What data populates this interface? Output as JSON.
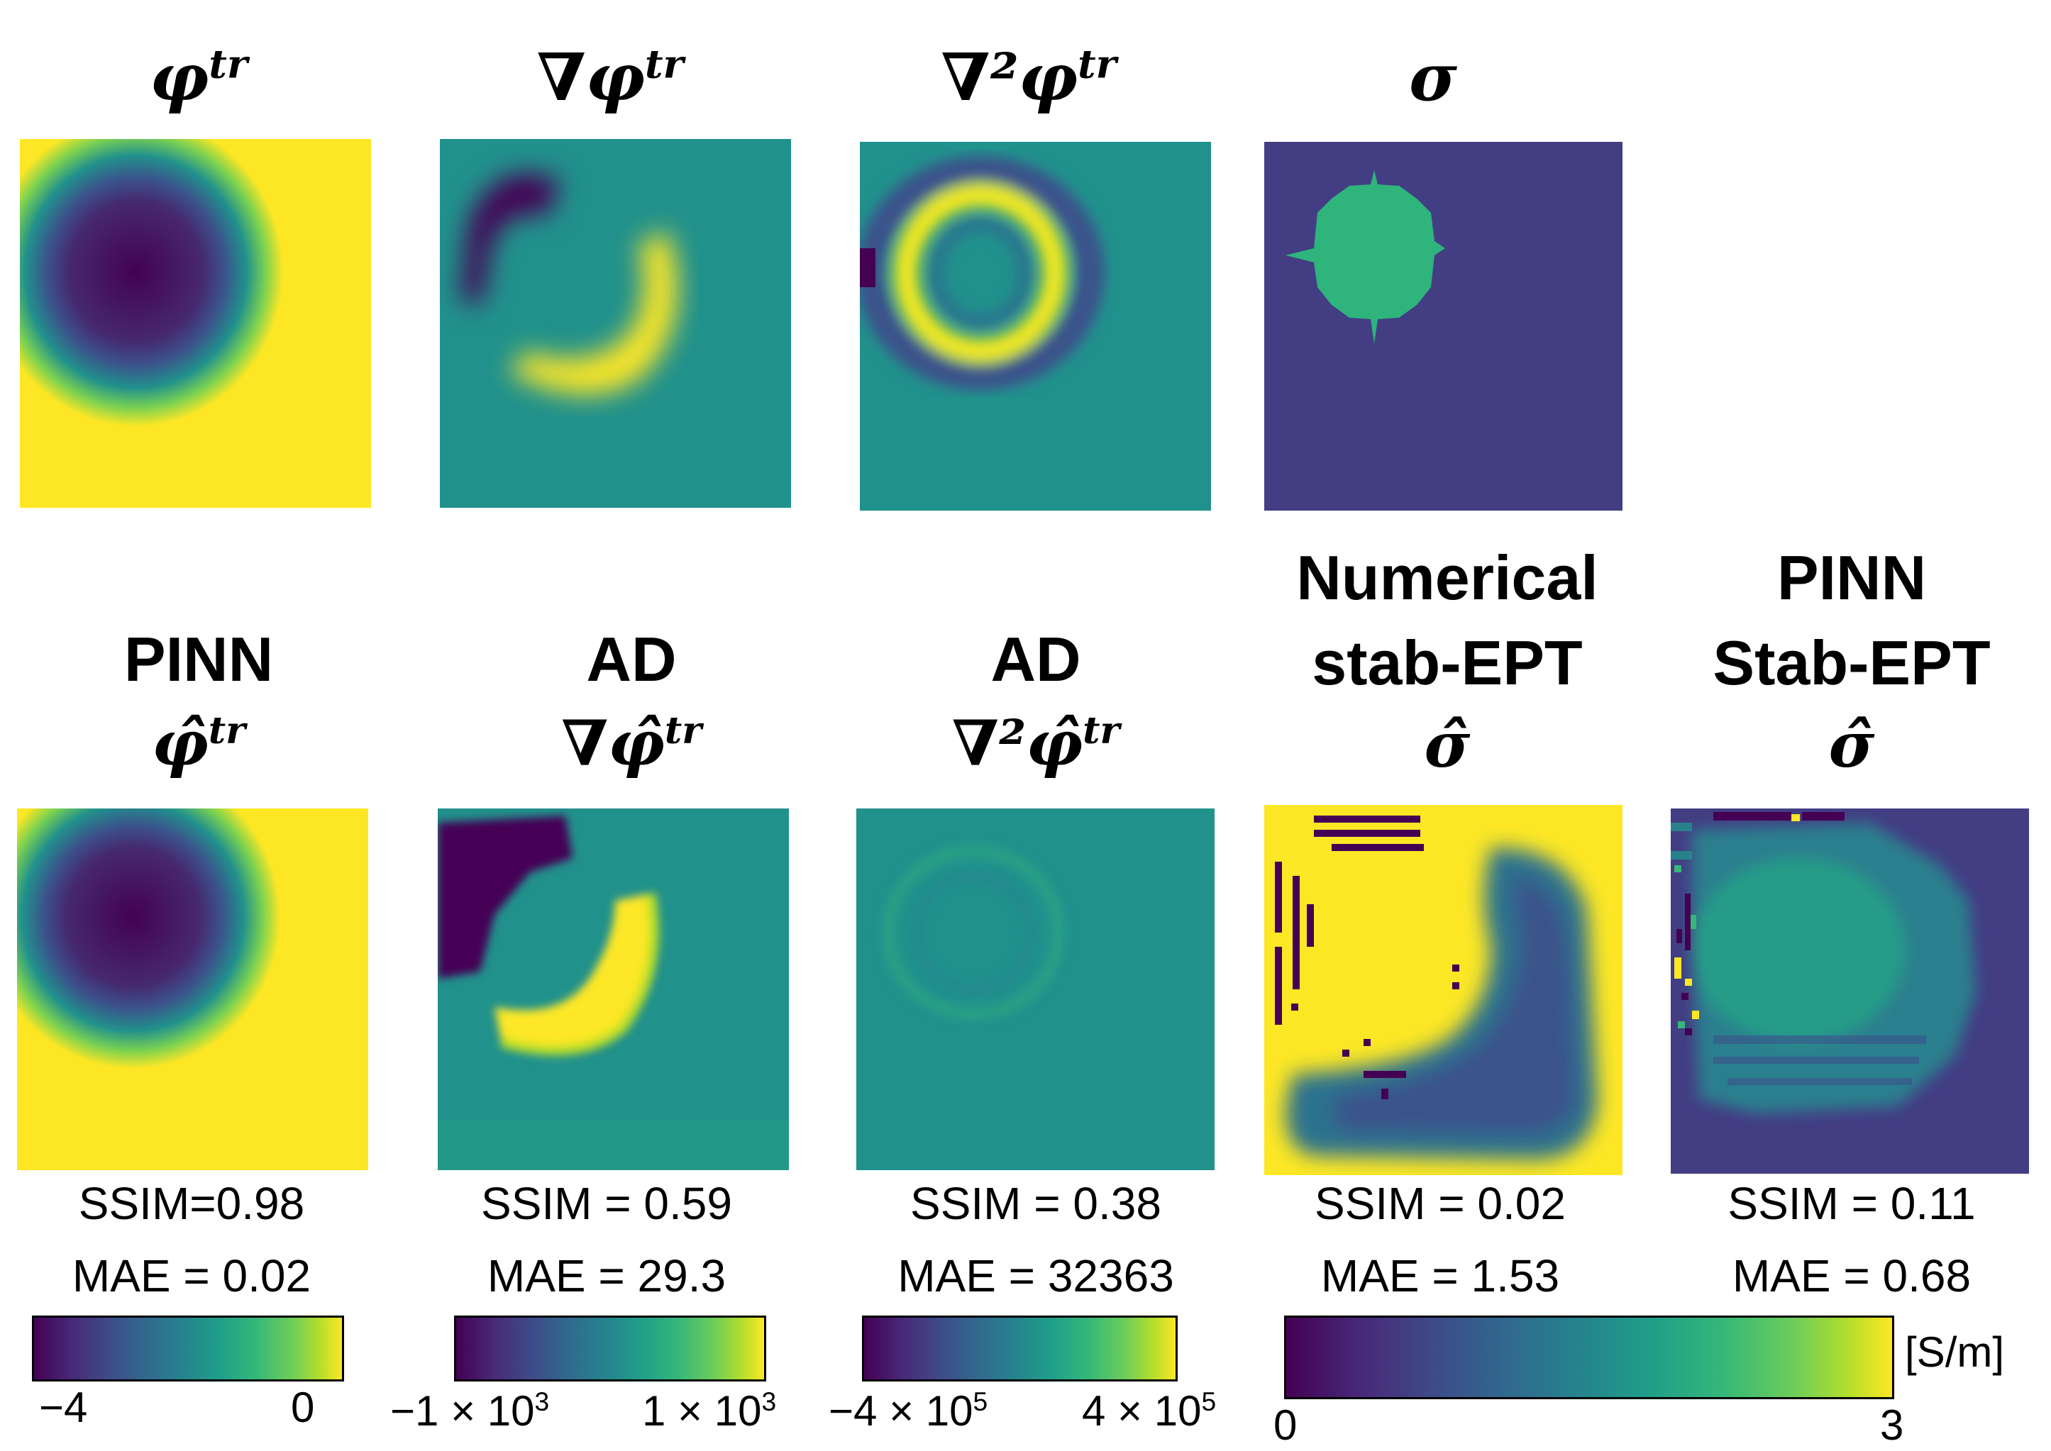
{
  "row1": {
    "titles": [
      "φ",
      "∇φ",
      "∇²φ",
      "σ"
    ],
    "superscript": "tr",
    "sigma_symbol": "σ"
  },
  "row2": {
    "panel1": {
      "line1": "PINN",
      "sym": "φ̂",
      "sup": "tr"
    },
    "panel2": {
      "line1": "AD",
      "sym": "∇φ̂",
      "sup": "tr"
    },
    "panel3": {
      "line1": "AD",
      "sym": "∇²φ̂",
      "sup": "tr"
    },
    "panel4": {
      "line1": "Numerical",
      "line2": "stab-EPT",
      "sym": "σ̂"
    },
    "panel5": {
      "line1": "PINN",
      "line2": "Stab-EPT",
      "sym": "σ̂"
    }
  },
  "metrics": [
    {
      "ssim": "SSIM=0.98",
      "mae": "MAE = 0.02"
    },
    {
      "ssim": "SSIM = 0.59",
      "mae": "MAE = 29.3"
    },
    {
      "ssim": "SSIM = 0.38",
      "mae": "MAE = 32363"
    },
    {
      "ssim": "SSIM = 0.02",
      "mae": "MAE = 1.53"
    },
    {
      "ssim": "SSIM = 0.11",
      "mae": "MAE = 0.68"
    }
  ],
  "colorbars": [
    {
      "min": "−4",
      "max": "0"
    },
    {
      "min_base": "−1 × 10",
      "min_exp": "3",
      "max_base": "1 × 10",
      "max_exp": "3"
    },
    {
      "min_base": "−4 × 10",
      "min_exp": "5",
      "max_base": "4 × 10",
      "max_exp": "5"
    },
    {
      "min": "0",
      "max": "3",
      "unit": "[S/m]"
    }
  ],
  "colors": {
    "dark": "#440154",
    "purple": "#3e3a7f",
    "teal": "#21918c",
    "green": "#2fb47c",
    "yellow": "#fde725"
  }
}
